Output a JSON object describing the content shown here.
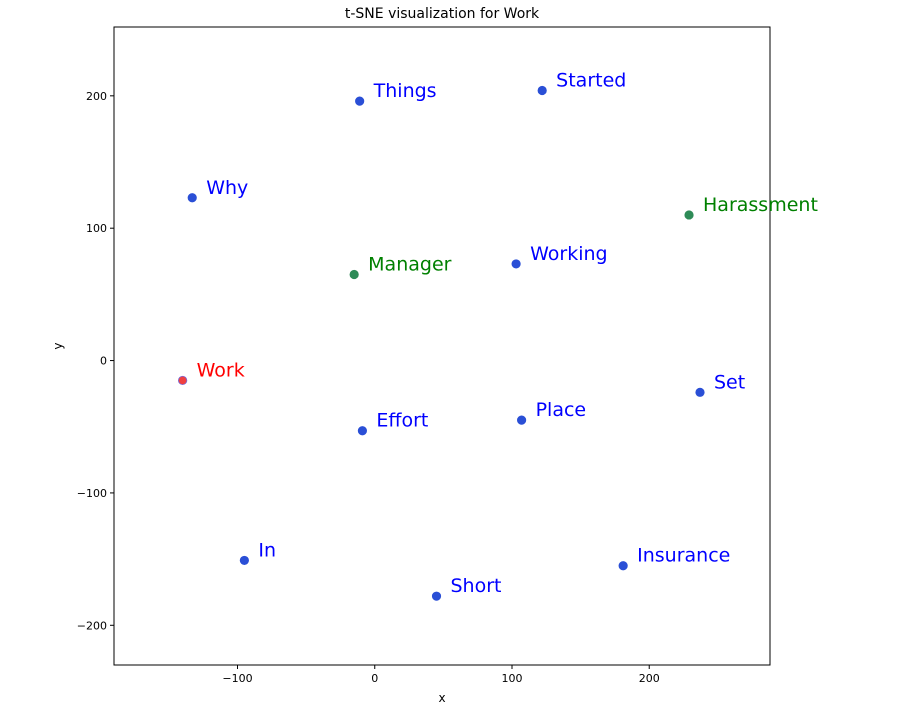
{
  "chart_data": {
    "type": "scatter",
    "title": "t-SNE visualization for Work",
    "xlabel": "x",
    "ylabel": "y",
    "xlim": [
      -190,
      288
    ],
    "ylim": [
      -230,
      252
    ],
    "x_ticks": [
      -100,
      0,
      100,
      200
    ],
    "y_ticks": [
      -200,
      -100,
      0,
      100,
      200
    ],
    "x_tick_labels": [
      "−100",
      "0",
      "100",
      "200"
    ],
    "y_tick_labels": [
      "−200",
      "−100",
      "0",
      "100",
      "200"
    ],
    "grid": false,
    "legend": "none",
    "colors": {
      "query": "#ff0000",
      "neighbor": "#0000ff",
      "cluster": "#008000",
      "dot_blue": "#2a4fd6",
      "dot_green": "#2e8b57",
      "dot_red": "#f04040"
    },
    "points": [
      {
        "label": "Things",
        "x": -11,
        "y": 196,
        "group": "neighbor"
      },
      {
        "label": "Started",
        "x": 122,
        "y": 204,
        "group": "neighbor"
      },
      {
        "label": "Why",
        "x": -133,
        "y": 123,
        "group": "neighbor"
      },
      {
        "label": "Harassment",
        "x": 229,
        "y": 110,
        "group": "cluster"
      },
      {
        "label": "Manager",
        "x": -15,
        "y": 65,
        "group": "cluster"
      },
      {
        "label": "Working",
        "x": 103,
        "y": 73,
        "group": "neighbor"
      },
      {
        "label": "Work",
        "x": -140,
        "y": -15,
        "group": "query"
      },
      {
        "label": "Set",
        "x": 237,
        "y": -24,
        "group": "neighbor"
      },
      {
        "label": "Place",
        "x": 107,
        "y": -45,
        "group": "neighbor"
      },
      {
        "label": "Effort",
        "x": -9,
        "y": -53,
        "group": "neighbor"
      },
      {
        "label": "In",
        "x": -95,
        "y": -151,
        "group": "neighbor"
      },
      {
        "label": "Insurance",
        "x": 181,
        "y": -155,
        "group": "neighbor"
      },
      {
        "label": "Short",
        "x": 45,
        "y": -178,
        "group": "neighbor"
      }
    ]
  }
}
